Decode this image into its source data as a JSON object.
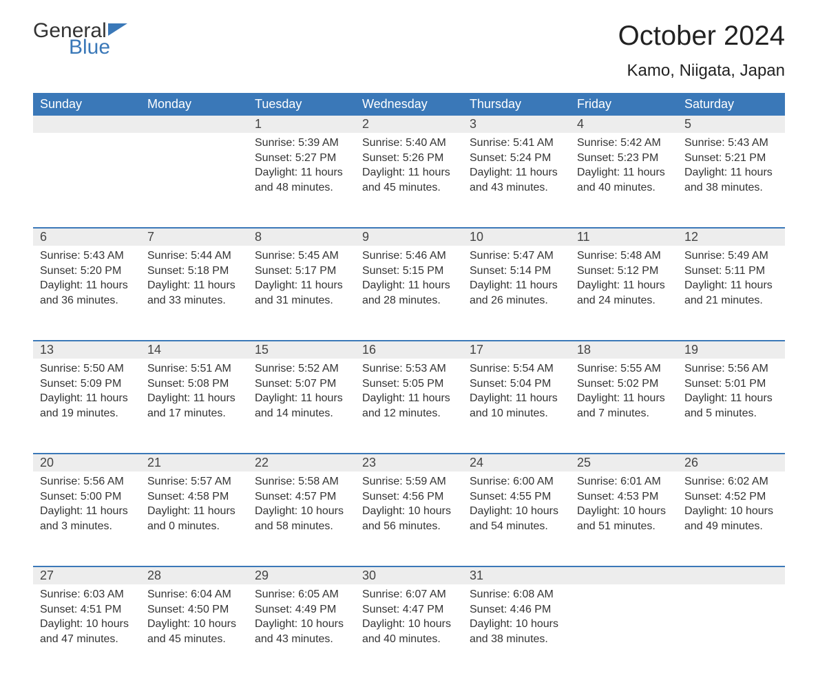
{
  "brand": {
    "word1": "General",
    "word2": "Blue",
    "accent_color": "#3a78b8"
  },
  "title": "October 2024",
  "location": "Kamo, Niigata, Japan",
  "colors": {
    "header_bg": "#3a78b8",
    "header_text": "#ffffff",
    "daynum_bg": "#ededed",
    "row_border": "#3a78b8",
    "body_text": "#333333",
    "page_bg": "#ffffff"
  },
  "typography": {
    "title_fontsize": 40,
    "location_fontsize": 24,
    "dayheader_fontsize": 18,
    "body_fontsize": 16
  },
  "calendar": {
    "type": "table",
    "day_headers": [
      "Sunday",
      "Monday",
      "Tuesday",
      "Wednesday",
      "Thursday",
      "Friday",
      "Saturday"
    ],
    "weeks": [
      [
        null,
        null,
        {
          "day": "1",
          "sunrise": "Sunrise: 5:39 AM",
          "sunset": "Sunset: 5:27 PM",
          "daylight": "Daylight: 11 hours and 48 minutes."
        },
        {
          "day": "2",
          "sunrise": "Sunrise: 5:40 AM",
          "sunset": "Sunset: 5:26 PM",
          "daylight": "Daylight: 11 hours and 45 minutes."
        },
        {
          "day": "3",
          "sunrise": "Sunrise: 5:41 AM",
          "sunset": "Sunset: 5:24 PM",
          "daylight": "Daylight: 11 hours and 43 minutes."
        },
        {
          "day": "4",
          "sunrise": "Sunrise: 5:42 AM",
          "sunset": "Sunset: 5:23 PM",
          "daylight": "Daylight: 11 hours and 40 minutes."
        },
        {
          "day": "5",
          "sunrise": "Sunrise: 5:43 AM",
          "sunset": "Sunset: 5:21 PM",
          "daylight": "Daylight: 11 hours and 38 minutes."
        }
      ],
      [
        {
          "day": "6",
          "sunrise": "Sunrise: 5:43 AM",
          "sunset": "Sunset: 5:20 PM",
          "daylight": "Daylight: 11 hours and 36 minutes."
        },
        {
          "day": "7",
          "sunrise": "Sunrise: 5:44 AM",
          "sunset": "Sunset: 5:18 PM",
          "daylight": "Daylight: 11 hours and 33 minutes."
        },
        {
          "day": "8",
          "sunrise": "Sunrise: 5:45 AM",
          "sunset": "Sunset: 5:17 PM",
          "daylight": "Daylight: 11 hours and 31 minutes."
        },
        {
          "day": "9",
          "sunrise": "Sunrise: 5:46 AM",
          "sunset": "Sunset: 5:15 PM",
          "daylight": "Daylight: 11 hours and 28 minutes."
        },
        {
          "day": "10",
          "sunrise": "Sunrise: 5:47 AM",
          "sunset": "Sunset: 5:14 PM",
          "daylight": "Daylight: 11 hours and 26 minutes."
        },
        {
          "day": "11",
          "sunrise": "Sunrise: 5:48 AM",
          "sunset": "Sunset: 5:12 PM",
          "daylight": "Daylight: 11 hours and 24 minutes."
        },
        {
          "day": "12",
          "sunrise": "Sunrise: 5:49 AM",
          "sunset": "Sunset: 5:11 PM",
          "daylight": "Daylight: 11 hours and 21 minutes."
        }
      ],
      [
        {
          "day": "13",
          "sunrise": "Sunrise: 5:50 AM",
          "sunset": "Sunset: 5:09 PM",
          "daylight": "Daylight: 11 hours and 19 minutes."
        },
        {
          "day": "14",
          "sunrise": "Sunrise: 5:51 AM",
          "sunset": "Sunset: 5:08 PM",
          "daylight": "Daylight: 11 hours and 17 minutes."
        },
        {
          "day": "15",
          "sunrise": "Sunrise: 5:52 AM",
          "sunset": "Sunset: 5:07 PM",
          "daylight": "Daylight: 11 hours and 14 minutes."
        },
        {
          "day": "16",
          "sunrise": "Sunrise: 5:53 AM",
          "sunset": "Sunset: 5:05 PM",
          "daylight": "Daylight: 11 hours and 12 minutes."
        },
        {
          "day": "17",
          "sunrise": "Sunrise: 5:54 AM",
          "sunset": "Sunset: 5:04 PM",
          "daylight": "Daylight: 11 hours and 10 minutes."
        },
        {
          "day": "18",
          "sunrise": "Sunrise: 5:55 AM",
          "sunset": "Sunset: 5:02 PM",
          "daylight": "Daylight: 11 hours and 7 minutes."
        },
        {
          "day": "19",
          "sunrise": "Sunrise: 5:56 AM",
          "sunset": "Sunset: 5:01 PM",
          "daylight": "Daylight: 11 hours and 5 minutes."
        }
      ],
      [
        {
          "day": "20",
          "sunrise": "Sunrise: 5:56 AM",
          "sunset": "Sunset: 5:00 PM",
          "daylight": "Daylight: 11 hours and 3 minutes."
        },
        {
          "day": "21",
          "sunrise": "Sunrise: 5:57 AM",
          "sunset": "Sunset: 4:58 PM",
          "daylight": "Daylight: 11 hours and 0 minutes."
        },
        {
          "day": "22",
          "sunrise": "Sunrise: 5:58 AM",
          "sunset": "Sunset: 4:57 PM",
          "daylight": "Daylight: 10 hours and 58 minutes."
        },
        {
          "day": "23",
          "sunrise": "Sunrise: 5:59 AM",
          "sunset": "Sunset: 4:56 PM",
          "daylight": "Daylight: 10 hours and 56 minutes."
        },
        {
          "day": "24",
          "sunrise": "Sunrise: 6:00 AM",
          "sunset": "Sunset: 4:55 PM",
          "daylight": "Daylight: 10 hours and 54 minutes."
        },
        {
          "day": "25",
          "sunrise": "Sunrise: 6:01 AM",
          "sunset": "Sunset: 4:53 PM",
          "daylight": "Daylight: 10 hours and 51 minutes."
        },
        {
          "day": "26",
          "sunrise": "Sunrise: 6:02 AM",
          "sunset": "Sunset: 4:52 PM",
          "daylight": "Daylight: 10 hours and 49 minutes."
        }
      ],
      [
        {
          "day": "27",
          "sunrise": "Sunrise: 6:03 AM",
          "sunset": "Sunset: 4:51 PM",
          "daylight": "Daylight: 10 hours and 47 minutes."
        },
        {
          "day": "28",
          "sunrise": "Sunrise: 6:04 AM",
          "sunset": "Sunset: 4:50 PM",
          "daylight": "Daylight: 10 hours and 45 minutes."
        },
        {
          "day": "29",
          "sunrise": "Sunrise: 6:05 AM",
          "sunset": "Sunset: 4:49 PM",
          "daylight": "Daylight: 10 hours and 43 minutes."
        },
        {
          "day": "30",
          "sunrise": "Sunrise: 6:07 AM",
          "sunset": "Sunset: 4:47 PM",
          "daylight": "Daylight: 10 hours and 40 minutes."
        },
        {
          "day": "31",
          "sunrise": "Sunrise: 6:08 AM",
          "sunset": "Sunset: 4:46 PM",
          "daylight": "Daylight: 10 hours and 38 minutes."
        },
        null,
        null
      ]
    ]
  }
}
